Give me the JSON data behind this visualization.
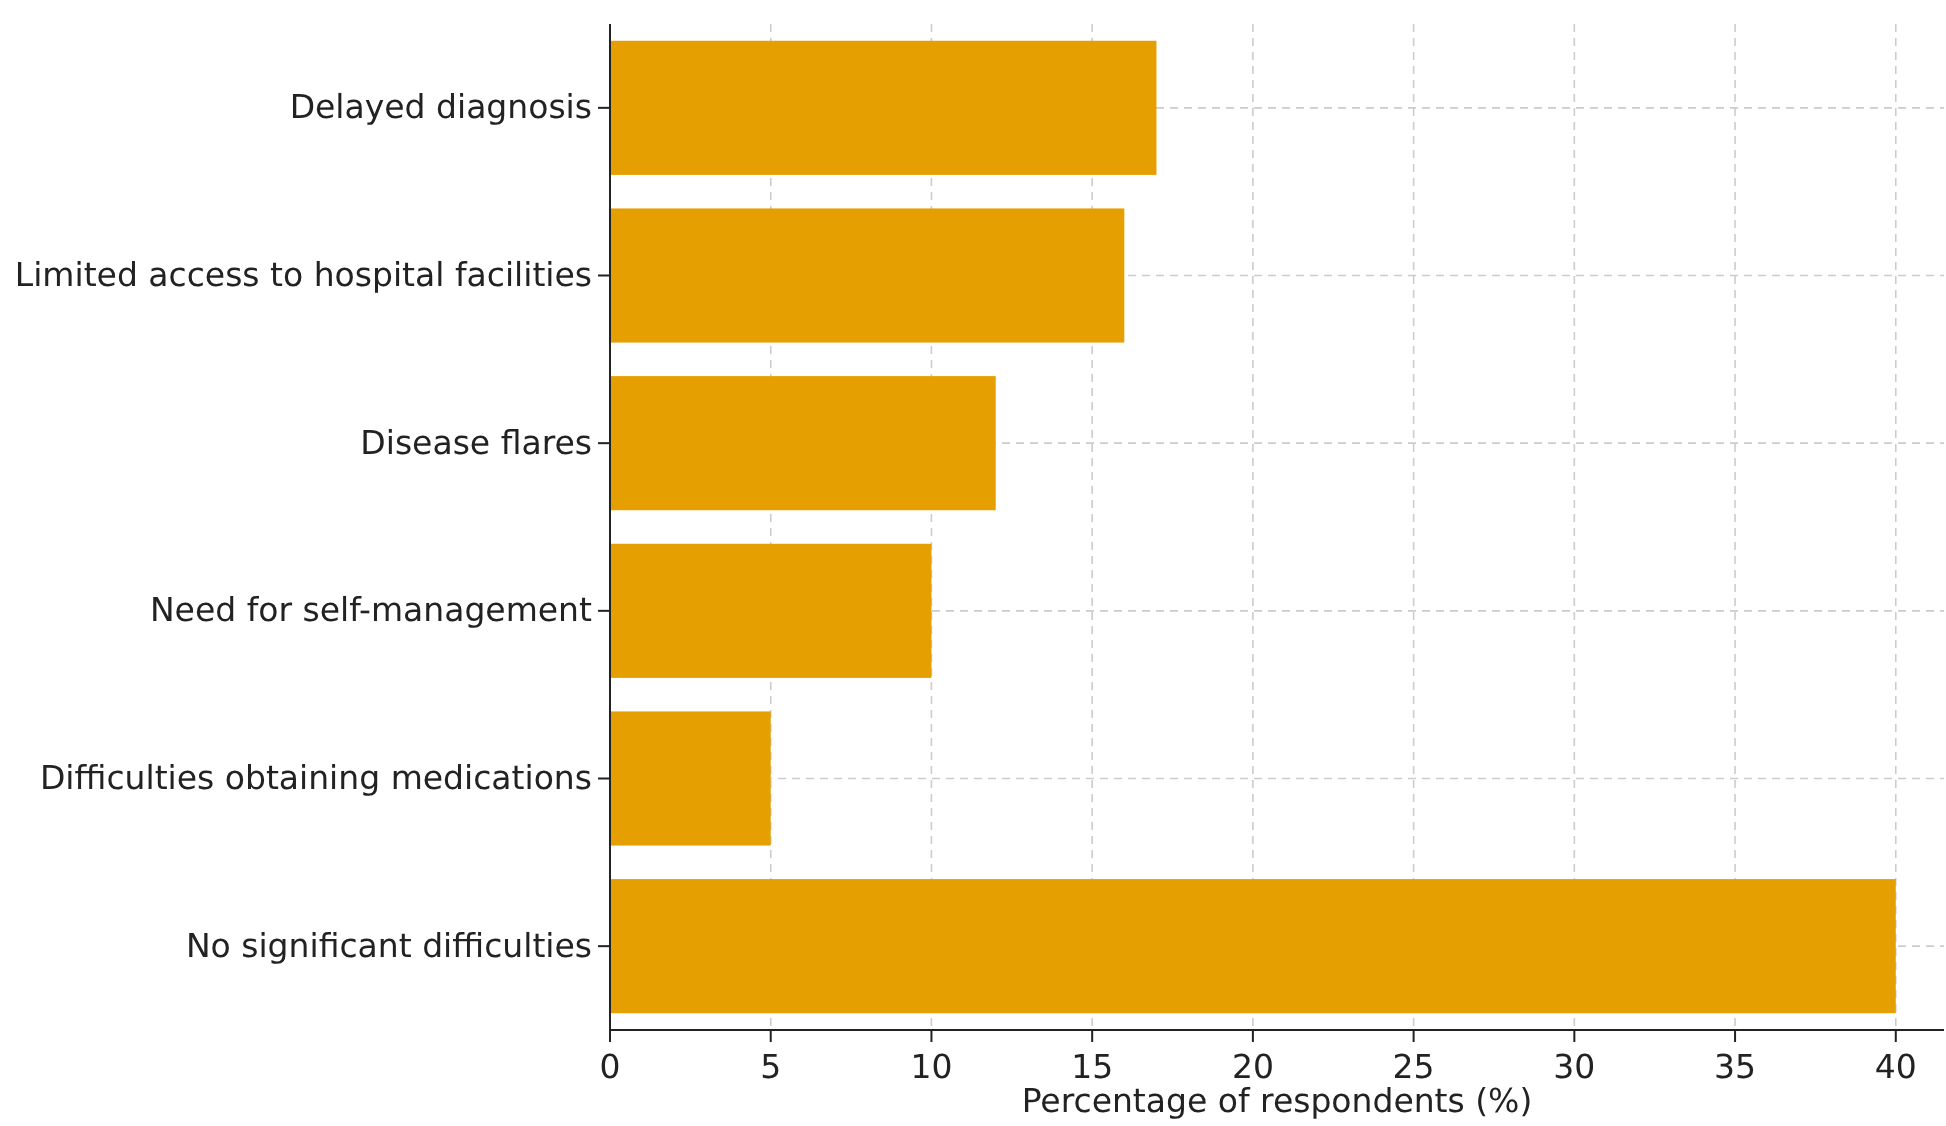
{
  "chart_data": {
    "type": "bar",
    "orientation": "horizontal",
    "categories": [
      "Delayed diagnosis",
      "Limited access to hospital facilities",
      "Disease flares",
      "Need for self-management",
      "Difficulties obtaining medications",
      "No significant difficulties"
    ],
    "values": [
      17,
      16,
      12,
      10,
      5,
      40
    ],
    "color": "#e69f00",
    "xlabel": "Percentage of respondents (%)",
    "xlim": [
      0,
      41.5
    ],
    "xticks": [
      0,
      5,
      10,
      15,
      20,
      25,
      30,
      35,
      40
    ],
    "grid": true
  }
}
